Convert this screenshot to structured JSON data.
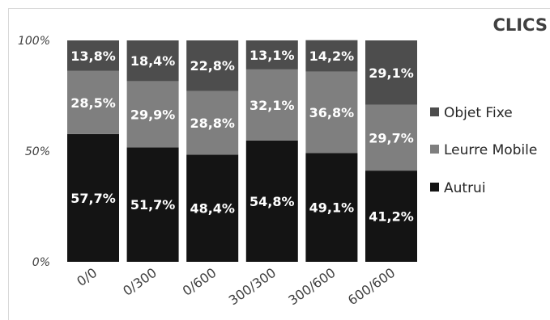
{
  "chart_data": {
    "type": "bar",
    "stacked": true,
    "title": "CLICS",
    "categories": [
      "0/0",
      "0/300",
      "0/600",
      "300/300",
      "300/600",
      "600/600"
    ],
    "y_ticks": [
      "0%",
      "50%",
      "100%"
    ],
    "ylim": [
      0,
      100
    ],
    "legend_position": "right",
    "series": [
      {
        "name": "Autrui",
        "color": "#141414",
        "values": [
          57.7,
          51.7,
          48.4,
          54.8,
          49.1,
          41.2
        ],
        "labels": [
          "57,7%",
          "51,7%",
          "48,4%",
          "54,8%",
          "49,1%",
          "41,2%"
        ]
      },
      {
        "name": "Leurre Mobile",
        "color": "#7f7f7f",
        "values": [
          28.5,
          29.9,
          28.8,
          32.1,
          36.8,
          29.7
        ],
        "labels": [
          "28,5%",
          "29,9%",
          "28,8%",
          "32,1%",
          "36,8%",
          "29,7%"
        ]
      },
      {
        "name": "Objet Fixe",
        "color": "#4d4d4d",
        "values": [
          13.8,
          18.4,
          22.8,
          13.1,
          14.2,
          29.1
        ],
        "labels": [
          "13,8%",
          "18,4%",
          "22,8%",
          "13,1%",
          "14,2%",
          "29,1%"
        ]
      }
    ],
    "legend_order": [
      "Objet Fixe",
      "Leurre Mobile",
      "Autrui"
    ]
  }
}
